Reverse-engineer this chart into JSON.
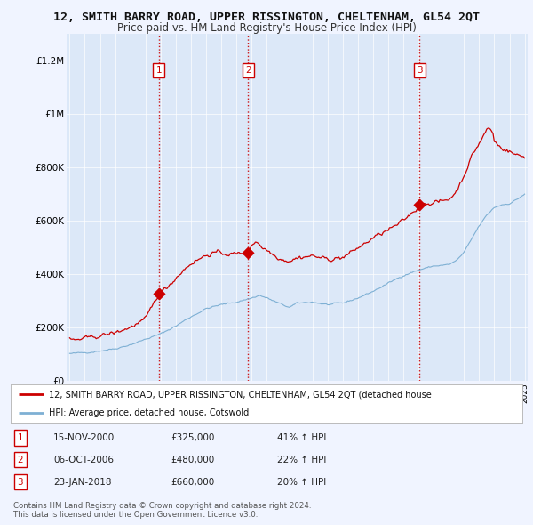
{
  "title": "12, SMITH BARRY ROAD, UPPER RISSINGTON, CHELTENHAM, GL54 2QT",
  "subtitle": "Price paid vs. HM Land Registry's House Price Index (HPI)",
  "background_color": "#f0f4ff",
  "plot_bg_color": "#dce8f8",
  "ylim": [
    0,
    1300000
  ],
  "yticks": [
    0,
    200000,
    400000,
    600000,
    800000,
    1000000,
    1200000
  ],
  "ytick_labels": [
    "£0",
    "£200K",
    "£400K",
    "£600K",
    "£800K",
    "£1M",
    "£1.2M"
  ],
  "xstart_year": 1995,
  "xend_year": 2025,
  "sale_year_nums": [
    2000.88,
    2006.77,
    2018.06
  ],
  "sale_prices": [
    325000,
    480000,
    660000
  ],
  "sale_labels": [
    "1",
    "2",
    "3"
  ],
  "vline_color": "#cc0000",
  "red_line_color": "#cc0000",
  "blue_line_color": "#7eb0d4",
  "legend_label_red": "12, SMITH BARRY ROAD, UPPER RISSINGTON, CHELTENHAM, GL54 2QT (detached house",
  "legend_label_blue": "HPI: Average price, detached house, Cotswold",
  "table_data": [
    {
      "num": "1",
      "date": "15-NOV-2000",
      "price": "£325,000",
      "change": "41% ↑ HPI"
    },
    {
      "num": "2",
      "date": "06-OCT-2006",
      "price": "£480,000",
      "change": "22% ↑ HPI"
    },
    {
      "num": "3",
      "date": "23-JAN-2018",
      "price": "£660,000",
      "change": "20% ↑ HPI"
    }
  ],
  "footer": "Contains HM Land Registry data © Crown copyright and database right 2024.\nThis data is licensed under the Open Government Licence v3.0."
}
